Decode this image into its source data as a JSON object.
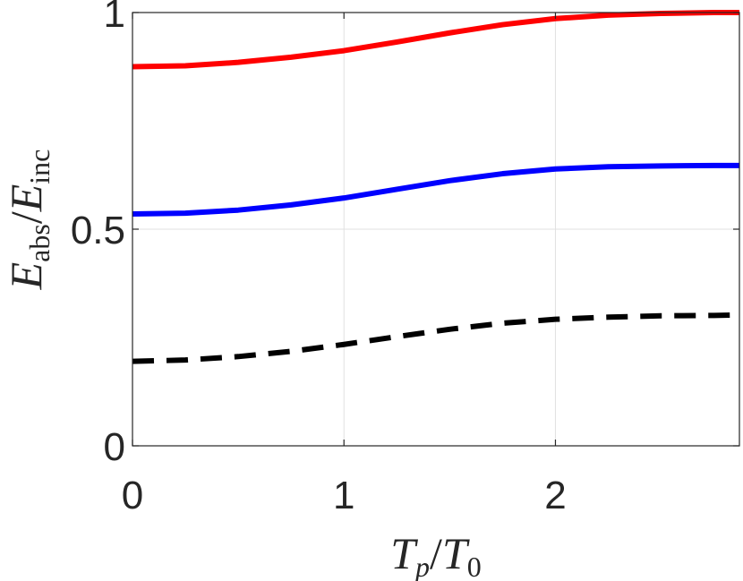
{
  "chart_data": {
    "type": "line",
    "xlabel": {
      "main": "T",
      "sub": "p",
      "sep": "/",
      "main2": "T",
      "sub2": "0"
    },
    "ylabel": {
      "main": "E",
      "sub": "abs",
      "sep": "/",
      "main2": "E",
      "sub2": "inc"
    },
    "xlim": [
      0,
      2.87
    ],
    "ylim": [
      0,
      1
    ],
    "xticks": [
      0,
      1,
      2
    ],
    "yticks": [
      0,
      0.5,
      1
    ],
    "xtick_labels": [
      "0",
      "1",
      "2"
    ],
    "ytick_labels": [
      "0",
      "0.5",
      "1"
    ],
    "grid": true,
    "series": [
      {
        "color": "#ff0000",
        "dash": "solid",
        "x": [
          0,
          0.25,
          0.5,
          0.75,
          1.0,
          1.25,
          1.5,
          1.75,
          2.0,
          2.25,
          2.5,
          2.75,
          2.87
        ],
        "y": [
          0.875,
          0.877,
          0.885,
          0.897,
          0.912,
          0.932,
          0.953,
          0.972,
          0.986,
          0.994,
          0.998,
          1.0,
          1.0
        ]
      },
      {
        "color": "#0000ff",
        "dash": "solid",
        "x": [
          0,
          0.25,
          0.5,
          0.75,
          1.0,
          1.25,
          1.5,
          1.75,
          2.0,
          2.25,
          2.5,
          2.75,
          2.87
        ],
        "y": [
          0.535,
          0.537,
          0.544,
          0.556,
          0.572,
          0.592,
          0.612,
          0.628,
          0.639,
          0.644,
          0.646,
          0.647,
          0.647
        ]
      },
      {
        "color": "#000000",
        "dash": "dashed",
        "x": [
          0,
          0.25,
          0.5,
          0.75,
          1.0,
          1.25,
          1.5,
          1.75,
          2.0,
          2.25,
          2.5,
          2.75,
          2.87
        ],
        "y": [
          0.195,
          0.198,
          0.206,
          0.218,
          0.234,
          0.252,
          0.269,
          0.283,
          0.292,
          0.297,
          0.3,
          0.301,
          0.302
        ]
      }
    ]
  }
}
